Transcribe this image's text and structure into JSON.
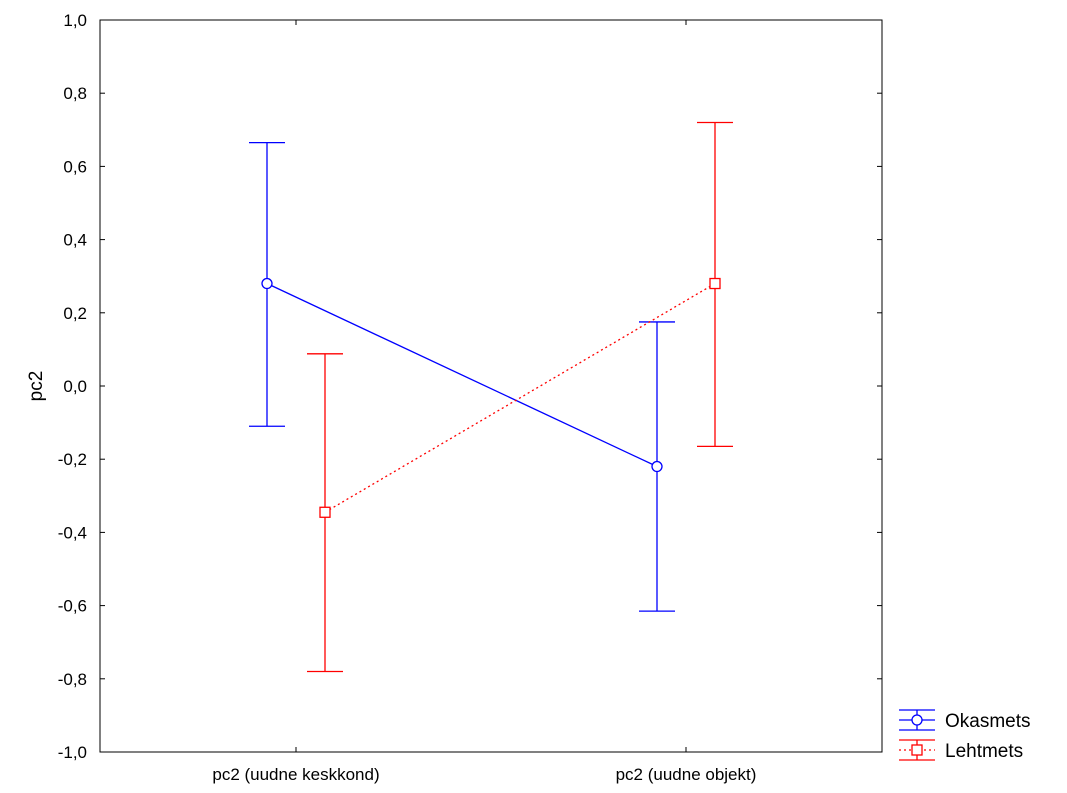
{
  "chart_data": {
    "type": "line",
    "title": "",
    "xlabel": "",
    "ylabel": "pc2",
    "ylim": [
      -1.0,
      1.0
    ],
    "yticks": [
      "1,0",
      "0,8",
      "0,6",
      "0,4",
      "0,2",
      "0,0",
      "-0,2",
      "-0,4",
      "-0,6",
      "-0,8",
      "-1,0"
    ],
    "categories": [
      "pc2 (uudne keskkond)",
      "pc2 (uudne objekt)"
    ],
    "grid": false,
    "legend_position": "bottom-right-outside",
    "error_bars": true,
    "series": [
      {
        "name": "Okasmets",
        "color": "#0000ff",
        "marker": "circle",
        "line_style": "solid",
        "values": [
          0.28,
          -0.22
        ],
        "lower": [
          -0.11,
          -0.615
        ],
        "upper": [
          0.665,
          0.175
        ]
      },
      {
        "name": "Lehtmets",
        "color": "#ff0000",
        "marker": "square",
        "line_style": "dotted",
        "values": [
          -0.345,
          0.28
        ],
        "lower": [
          -0.78,
          -0.165
        ],
        "upper": [
          0.088,
          0.72
        ]
      }
    ]
  }
}
